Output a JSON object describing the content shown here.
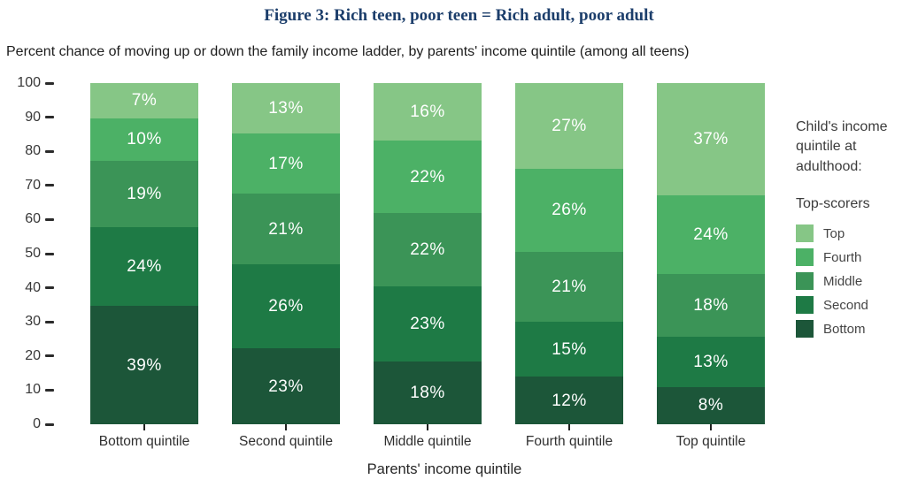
{
  "title": "Figure 3: Rich teen, poor teen = Rich adult, poor adult",
  "subtitle": "Percent chance of moving up or down the family income ladder, by parents' income quintile (among all teens)",
  "chart_data": {
    "type": "bar",
    "stacked": true,
    "orientation": "vertical",
    "categories": [
      "Bottom quintile",
      "Second quintile",
      "Middle quintile",
      "Fourth quintile",
      "Top quintile"
    ],
    "series": [
      {
        "name": "Top",
        "color": "#86c686",
        "values": [
          7,
          13,
          16,
          27,
          37
        ]
      },
      {
        "name": "Fourth",
        "color": "#4cb166",
        "values": [
          10,
          17,
          22,
          26,
          24
        ]
      },
      {
        "name": "Middle",
        "color": "#3b9457",
        "values": [
          19,
          21,
          22,
          21,
          18
        ]
      },
      {
        "name": "Second",
        "color": "#1e7a45",
        "values": [
          24,
          26,
          23,
          15,
          13
        ]
      },
      {
        "name": "Bottom",
        "color": "#1c5639",
        "values": [
          39,
          23,
          18,
          12,
          8
        ]
      }
    ],
    "value_suffix": "%",
    "xlabel": "Parents' income quintile",
    "ylabel": "",
    "ylim": [
      0,
      100
    ],
    "yticks": [
      100,
      90,
      80,
      70,
      60,
      50,
      40,
      30,
      20,
      10,
      0
    ],
    "grid": false,
    "legend_position": "right",
    "legend_title": "Child's income quintile at adulthood:",
    "legend_subtitle": "Top-scorers",
    "label_color": "#ffffff",
    "title_color": "#1c3e6b"
  }
}
